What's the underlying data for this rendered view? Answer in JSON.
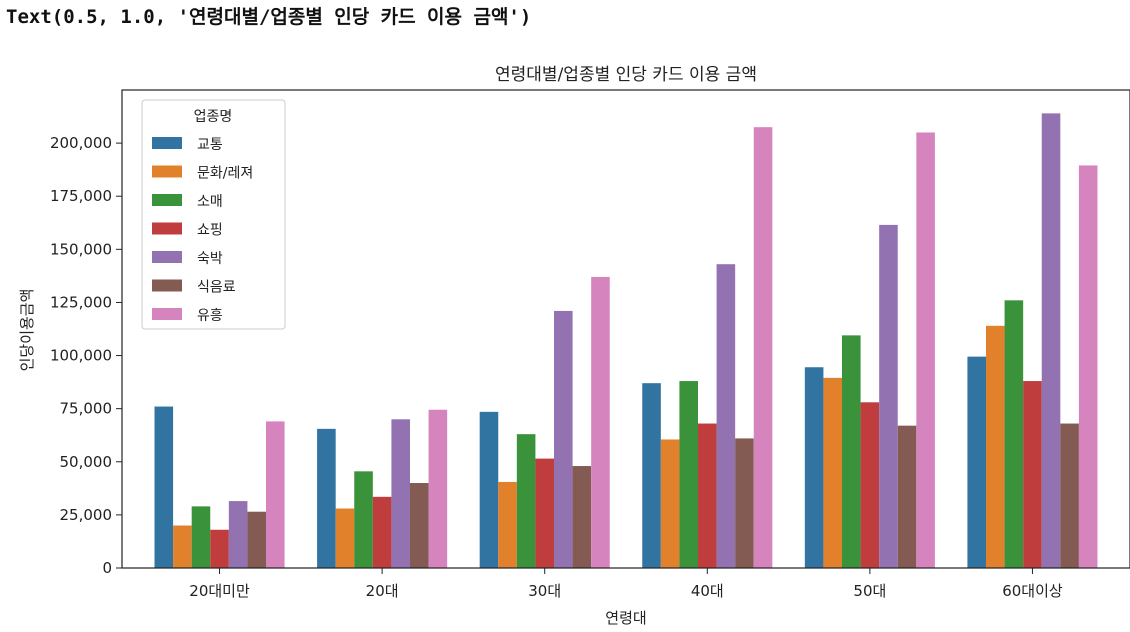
{
  "output_text": "Text(0.5, 1.0, '연령대별/업종별 인당 카드 이용 금액')",
  "chart_data": {
    "type": "bar",
    "title": "연령대별/업종별 인당 카드 이용 금액",
    "xlabel": "연령대",
    "ylabel": "인당이용금액",
    "categories": [
      "20대미만",
      "20대",
      "30대",
      "40대",
      "50대",
      "60대이상"
    ],
    "ylim": [
      0,
      225000
    ],
    "yticks": [
      0,
      25000,
      50000,
      75000,
      100000,
      125000,
      150000,
      175000,
      200000
    ],
    "ytick_labels": [
      "0",
      "25,000",
      "50,000",
      "75,000",
      "100,000",
      "125,000",
      "150,000",
      "175,000",
      "200,000"
    ],
    "legend": {
      "title": "업종명",
      "position": "top-left"
    },
    "grid": false,
    "series": [
      {
        "name": "교통",
        "color": "#3274a1",
        "values": [
          76000,
          65500,
          73500,
          87000,
          94500,
          99500
        ]
      },
      {
        "name": "문화/레져",
        "color": "#e1812c",
        "values": [
          20000,
          28000,
          40500,
          60500,
          89500,
          114000
        ]
      },
      {
        "name": "소매",
        "color": "#3a923a",
        "values": [
          29000,
          45500,
          63000,
          88000,
          109500,
          126000
        ]
      },
      {
        "name": "쇼핑",
        "color": "#c03d3e",
        "values": [
          18000,
          33500,
          51500,
          68000,
          78000,
          88000
        ]
      },
      {
        "name": "숙박",
        "color": "#9372b2",
        "values": [
          31500,
          70000,
          121000,
          143000,
          161500,
          214000
        ]
      },
      {
        "name": "식음료",
        "color": "#845b53",
        "values": [
          26500,
          40000,
          48000,
          61000,
          67000,
          68000
        ]
      },
      {
        "name": "유흥",
        "color": "#d684bd",
        "values": [
          69000,
          74500,
          137000,
          207500,
          205000,
          189500
        ]
      }
    ]
  }
}
